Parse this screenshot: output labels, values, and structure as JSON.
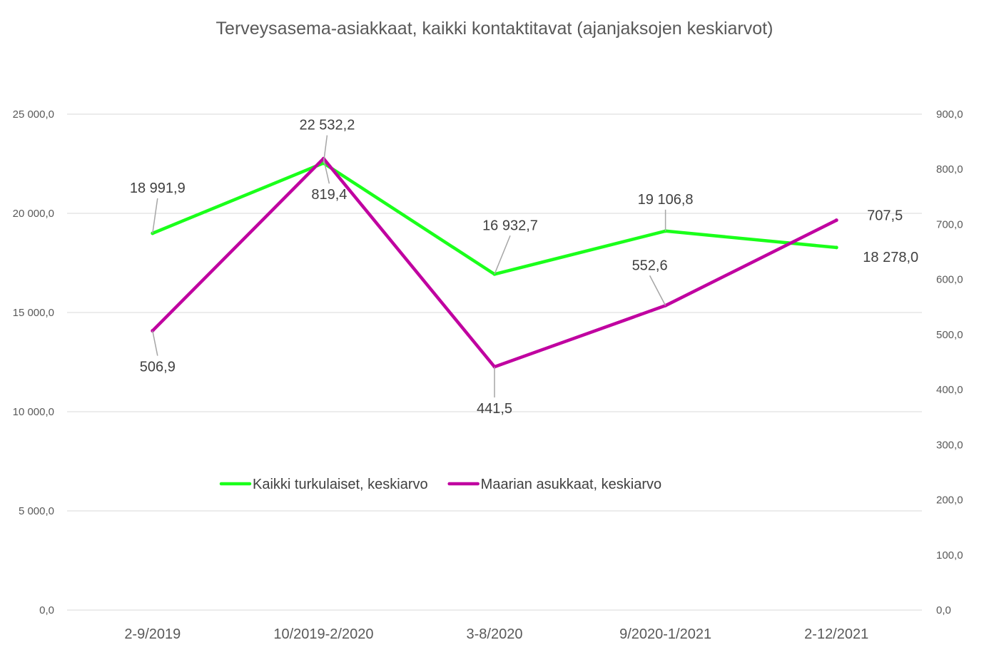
{
  "chart_data": {
    "type": "line",
    "title": "Terveysasema-asiakkaat, kaikki kontaktitavat (ajanjaksojen keskiarvot)",
    "categories": [
      "2-9/2019",
      "10/2019-2/2020",
      "3-8/2020",
      "9/2020-1/2021",
      "2-12/2021"
    ],
    "y_left": {
      "range": [
        0,
        25000
      ],
      "ticks": [
        0,
        5000,
        10000,
        15000,
        20000,
        25000
      ],
      "tick_labels": [
        "0,0",
        "5 000,0",
        "10 000,0",
        "15 000,0",
        "20 000,0",
        "25 000,0"
      ]
    },
    "y_right": {
      "range": [
        0,
        900
      ],
      "ticks": [
        0,
        100,
        200,
        300,
        400,
        500,
        600,
        700,
        800,
        900
      ],
      "tick_labels": [
        "0,0",
        "100,0",
        "200,0",
        "300,0",
        "400,0",
        "500,0",
        "600,0",
        "700,0",
        "800,0",
        "900,0"
      ]
    },
    "grid": true,
    "legend": "center",
    "series": [
      {
        "name": "Kaikki turkulaiset, keskiarvo",
        "axis": "left",
        "color": "#1aff1a",
        "values": [
          18991.9,
          22532.2,
          16932.7,
          19106.8,
          18278.0
        ],
        "labels": [
          "18 991,9",
          "22 532,2",
          "16 932,7",
          "19 106,8",
          "18 278,0"
        ]
      },
      {
        "name": "Maarian asukkaat, keskiarvo",
        "axis": "right",
        "color": "#c000a0",
        "values": [
          506.9,
          819.4,
          441.5,
          552.6,
          707.5
        ],
        "labels": [
          "506,9",
          "819,4",
          "441,5",
          "552,6",
          "707,5"
        ]
      }
    ]
  }
}
